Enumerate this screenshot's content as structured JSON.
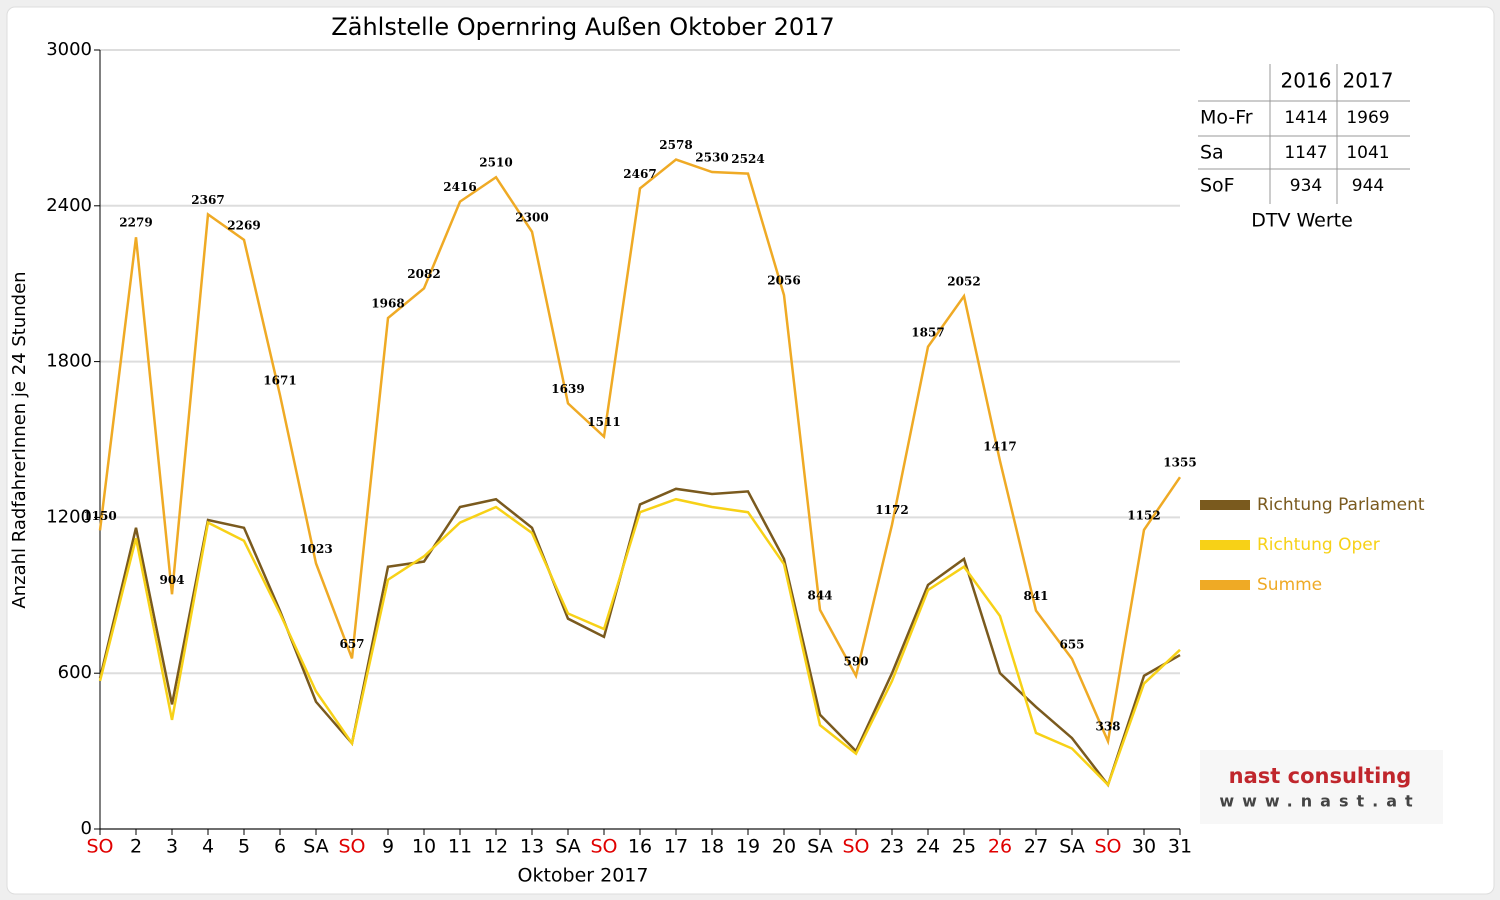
{
  "chart_data": {
    "type": "line",
    "title": "Zählstelle Opernring Außen Oktober 2017",
    "x_label": "Oktober 2017",
    "y_label": "Anzahl RadfahrerInnen je 24 Stunden",
    "categories": [
      "SO",
      "2",
      "3",
      "4",
      "5",
      "6",
      "SA",
      "SO",
      "9",
      "10",
      "11",
      "12",
      "13",
      "SA",
      "SO",
      "16",
      "17",
      "18",
      "19",
      "20",
      "SA",
      "SO",
      "23",
      "24",
      "25",
      "26",
      "27",
      "SA",
      "SO",
      "30",
      "31"
    ],
    "category_label_colors": [
      "#e00000",
      "#000000",
      "#000000",
      "#000000",
      "#000000",
      "#000000",
      "#000000",
      "#e00000",
      "#000000",
      "#000000",
      "#000000",
      "#000000",
      "#000000",
      "#000000",
      "#e00000",
      "#000000",
      "#000000",
      "#000000",
      "#000000",
      "#000000",
      "#000000",
      "#e00000",
      "#000000",
      "#000000",
      "#000000",
      "#e00000",
      "#000000",
      "#000000",
      "#e00000",
      "#000000",
      "#000000"
    ],
    "ylim": [
      0,
      3000
    ],
    "yticks": [
      0,
      600,
      1200,
      1800,
      2400,
      3000
    ],
    "grid": true,
    "legend": "right",
    "series": [
      {
        "name": "Richtung Parlament",
        "color": "#7a5a1e",
        "values": [
          580,
          1160,
          480,
          1190,
          1160,
          840,
          490,
          330,
          1010,
          1030,
          1240,
          1270,
          1160,
          810,
          740,
          1250,
          1310,
          1290,
          1300,
          1040,
          440,
          300,
          600,
          940,
          1040,
          600,
          470,
          350,
          170,
          590,
          670
        ]
      },
      {
        "name": "Richtung Oper",
        "color": "#f7d117",
        "values": [
          570,
          1120,
          420,
          1180,
          1110,
          830,
          530,
          330,
          960,
          1050,
          1180,
          1240,
          1140,
          830,
          770,
          1220,
          1270,
          1240,
          1220,
          1020,
          400,
          290,
          570,
          920,
          1010,
          820,
          370,
          310,
          170,
          560,
          690
        ]
      },
      {
        "name": "Summe",
        "color": "#efaa25",
        "show_labels": true,
        "values": [
          1150,
          2279,
          904,
          2367,
          2269,
          1671,
          1023,
          657,
          1968,
          2082,
          2416,
          2510,
          2300,
          1639,
          1511,
          2467,
          2578,
          2530,
          2524,
          2056,
          844,
          590,
          1172,
          1857,
          2052,
          1417,
          841,
          655,
          338,
          1152,
          1355
        ]
      }
    ]
  },
  "dtv_table": {
    "columns": [
      "2016",
      "2017"
    ],
    "rows": [
      {
        "label": "Mo-Fr",
        "values": [
          1414,
          1969
        ]
      },
      {
        "label": "Sa",
        "values": [
          1147,
          1041
        ]
      },
      {
        "label": "SoF",
        "values": [
          934,
          944
        ]
      }
    ],
    "caption": "DTV Werte"
  },
  "logo": {
    "name": "nast consulting",
    "url": "www.nast.at"
  }
}
